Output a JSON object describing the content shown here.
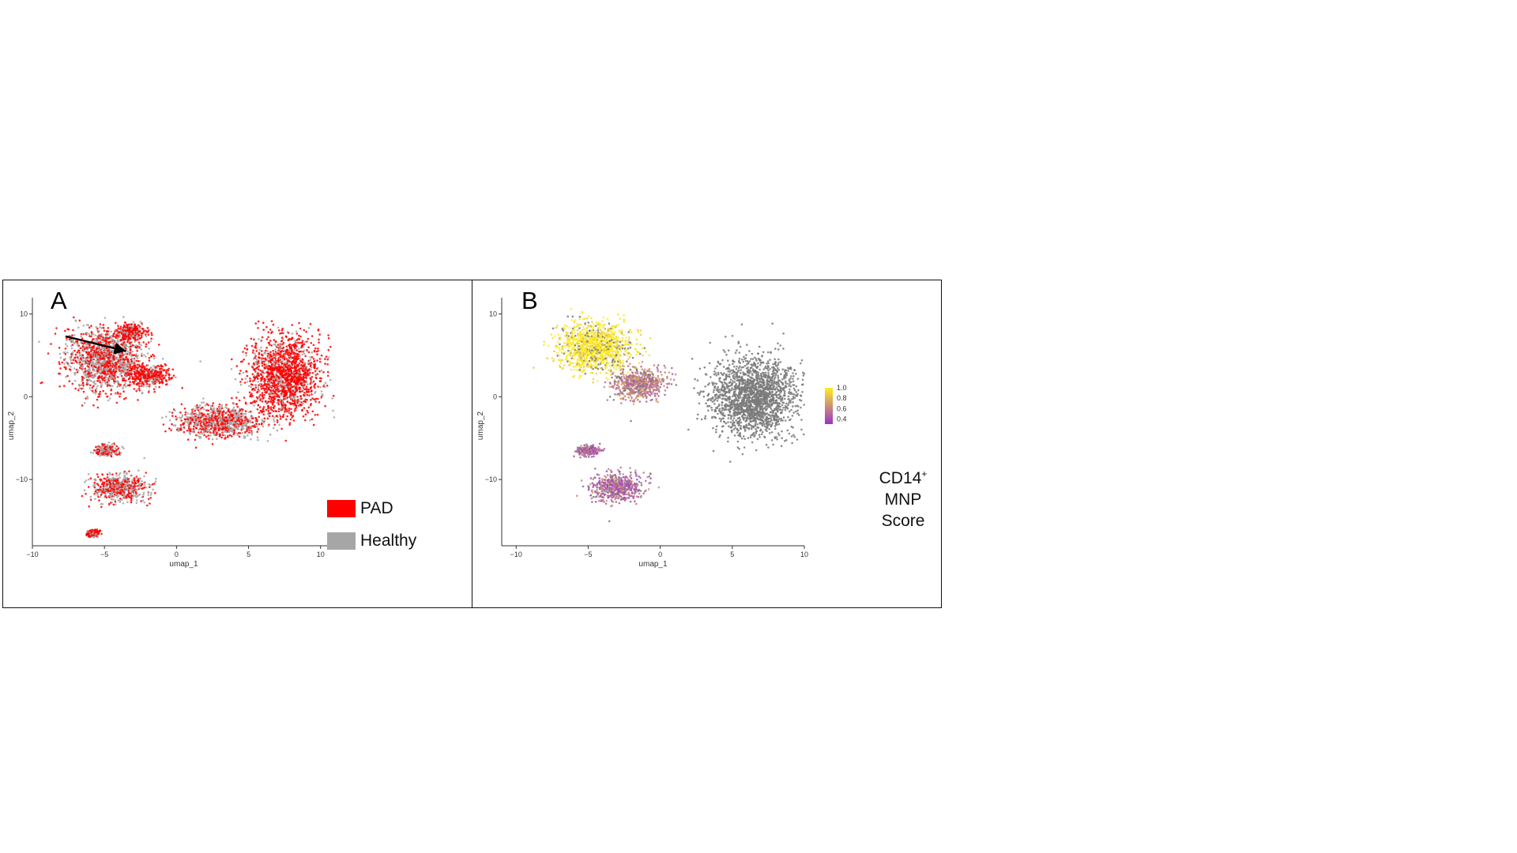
{
  "chart_data": [
    {
      "type": "scatter",
      "panel_label": "A",
      "xlabel": "umap_1",
      "ylabel": "umap_2",
      "xlim": [
        -10,
        11
      ],
      "ylim": [
        -18,
        11
      ],
      "x_ticks": [
        -10,
        -5,
        0,
        5,
        10
      ],
      "y_ticks": [
        10,
        0,
        -10
      ],
      "grid": false,
      "legend": {
        "placement": "bottom-right",
        "entries": [
          {
            "label": "PAD",
            "color": "#ff0000"
          },
          {
            "label": "Healthy",
            "color": "#a6a6a6"
          }
        ]
      },
      "annotations": [
        {
          "type": "arrow",
          "from": [
            -7.7,
            7.3
          ],
          "to": [
            -3.5,
            5.5
          ]
        }
      ],
      "clusters": [
        {
          "region": "upper-left",
          "center": [
            -5.0,
            4.5
          ],
          "spread": [
            3.1,
            4.4
          ],
          "dominant": "mixed"
        },
        {
          "region": "upper-left tip",
          "center": [
            -3.2,
            7.8
          ],
          "spread": [
            1.2,
            1.2
          ],
          "dominant": "PAD"
        },
        {
          "region": "upper-left inner",
          "center": [
            -2.0,
            2.5
          ],
          "spread": [
            1.8,
            1.5
          ],
          "dominant": "PAD"
        },
        {
          "region": "right",
          "center": [
            7.5,
            2.5
          ],
          "spread": [
            2.9,
            5.5
          ],
          "dominant": "PAD"
        },
        {
          "region": "central-bottom",
          "center": [
            3.0,
            -3.0
          ],
          "spread": [
            3.5,
            2.2
          ],
          "dominant": "mixed"
        },
        {
          "region": "lower-middle",
          "center": [
            -4.0,
            -11.0
          ],
          "spread": [
            2.2,
            2.0
          ],
          "dominant": "mixed"
        },
        {
          "region": "small-left",
          "center": [
            -4.8,
            -6.5
          ],
          "spread": [
            1.0,
            0.8
          ],
          "dominant": "mixed"
        },
        {
          "region": "bottom",
          "center": [
            -5.8,
            -16.5
          ],
          "spread": [
            0.5,
            0.5
          ],
          "dominant": "PAD"
        }
      ]
    },
    {
      "type": "scatter",
      "panel_label": "B",
      "xlabel": "umap_1",
      "ylabel": "umap_2",
      "xlim": [
        -11,
        10
      ],
      "ylim": [
        -18,
        11
      ],
      "x_ticks": [
        -10,
        -5,
        0,
        5,
        10
      ],
      "y_ticks": [
        10,
        0,
        -10
      ],
      "grid": false,
      "colorbar": {
        "title_main": "CD14",
        "title_sup": "+",
        "title_line2": "MNP",
        "title_line3": "Score",
        "ticks": [
          "1.0",
          "0.8",
          "0.6",
          "0.4"
        ],
        "range": [
          0.3,
          1.0
        ],
        "low_color": "#9933cc",
        "high_color": "#ffee22",
        "background_color": "#7a7a7a"
      },
      "clusters": [
        {
          "region": "upper-left",
          "center": [
            -4.5,
            6.0
          ],
          "spread": [
            3.0,
            3.5
          ],
          "score": 1.0
        },
        {
          "region": "upper-middle",
          "center": [
            -1.5,
            1.5
          ],
          "spread": [
            2.2,
            2.2
          ],
          "score": 0.6
        },
        {
          "region": "right",
          "center": [
            6.5,
            0.0
          ],
          "spread": [
            3.5,
            5.5
          ],
          "score": null
        },
        {
          "region": "small-left",
          "center": [
            -5.0,
            -6.5
          ],
          "spread": [
            1.0,
            0.8
          ],
          "score": 0.5
        },
        {
          "region": "lower-middle",
          "center": [
            -3.0,
            -11.0
          ],
          "spread": [
            2.2,
            2.0
          ],
          "score": 0.5
        }
      ]
    }
  ]
}
